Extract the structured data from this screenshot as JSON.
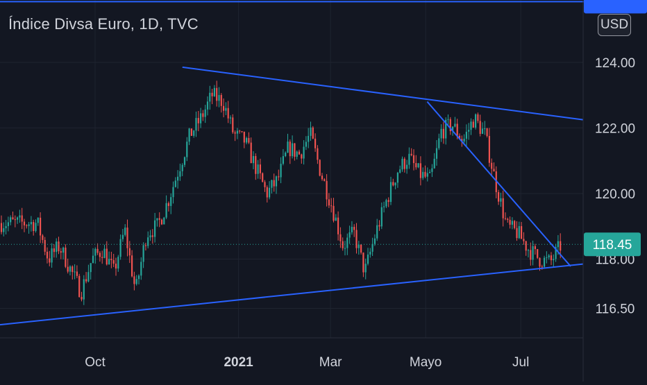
{
  "header": {
    "title": "Índice Divsa Euro, 1D, TVC",
    "currency": "USD"
  },
  "price_axis": {
    "labels": [
      "124.00",
      "122.00",
      "120.00",
      "118.00",
      "116.50"
    ],
    "current_price": "118.45",
    "current_price_color": "#26a69a"
  },
  "time_axis": {
    "labels": [
      "Oct",
      "2021",
      "Mar",
      "Mayo",
      "Jul"
    ]
  },
  "colors": {
    "background": "#131722",
    "up": "#26a69a",
    "down": "#ef5350",
    "trendline": "#2962ff",
    "grid": "#1f2430"
  },
  "chart_data": {
    "type": "candlestick",
    "title": "Índice Divsa Euro, 1D, TVC",
    "xlabel": "",
    "ylabel": "",
    "x_ticks": [
      "Oct",
      "2021",
      "Mar",
      "Mayo",
      "Jul"
    ],
    "y_ticks": [
      124.0,
      122.0,
      120.0,
      118.0,
      116.5
    ],
    "ylim": [
      115.6,
      125.9
    ],
    "last_price": 118.45,
    "grid": true,
    "series": [
      {
        "name": "close",
        "x": [
          "2020-08-25",
          "2020-09-01",
          "2020-09-08",
          "2020-09-15",
          "2020-09-22",
          "2020-09-29",
          "2020-10-06",
          "2020-10-13",
          "2020-10-20",
          "2020-10-27",
          "2020-11-03",
          "2020-11-10",
          "2020-11-17",
          "2020-11-24",
          "2020-12-01",
          "2020-12-08",
          "2020-12-15",
          "2020-12-22",
          "2020-12-29",
          "2021-01-05",
          "2021-01-12",
          "2021-01-19",
          "2021-01-26",
          "2021-02-02",
          "2021-02-09",
          "2021-02-16",
          "2021-02-23",
          "2021-03-02",
          "2021-03-09",
          "2021-03-16",
          "2021-03-23",
          "2021-03-30",
          "2021-04-06",
          "2021-04-13",
          "2021-04-20",
          "2021-04-27",
          "2021-05-04",
          "2021-05-11",
          "2021-05-18",
          "2021-05-25",
          "2021-06-01",
          "2021-06-08",
          "2021-06-15",
          "2021-06-22",
          "2021-06-29",
          "2021-07-06",
          "2021-07-13",
          "2021-07-20",
          "2021-07-27"
        ],
        "values": [
          119.1,
          118.0,
          118.4,
          117.7,
          117.0,
          118.0,
          118.3,
          117.6,
          118.9,
          117.0,
          118.8,
          119.0,
          119.8,
          120.8,
          121.8,
          122.3,
          123.0,
          122.8,
          121.8,
          121.6,
          120.8,
          120.0,
          120.4,
          121.4,
          121.2,
          121.8,
          120.6,
          119.6,
          118.4,
          118.8,
          117.6,
          118.8,
          119.8,
          120.7,
          121.1,
          120.6,
          120.4,
          121.9,
          122.1,
          121.6,
          122.3,
          121.8,
          120.3,
          119.0,
          118.8,
          118.3,
          118.0,
          117.9,
          118.45
        ]
      }
    ],
    "trendlines": [
      {
        "from": [
          "2020-11-26",
          123.85
        ],
        "to": [
          "2021-08-10",
          122.25
        ]
      },
      {
        "from": [
          "2020-08-01",
          116.0
        ],
        "to": [
          "2021-08-10",
          117.85
        ]
      },
      {
        "from": [
          "2021-05-02",
          122.8
        ],
        "to": [
          "2021-08-02",
          117.78
        ]
      },
      {
        "from": [
          "2020-08-01",
          125.85
        ],
        "to": [
          "2021-08-10",
          125.85
        ]
      }
    ],
    "price_line": 118.45
  }
}
